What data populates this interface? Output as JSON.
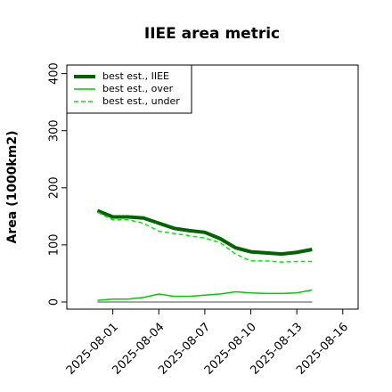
{
  "chart_data": {
    "type": "line",
    "title": "IIEE area metric",
    "y_label": "Area (1000km2)",
    "x": [
      "2025-07-31",
      "2025-08-01",
      "2025-08-02",
      "2025-08-03",
      "2025-08-04",
      "2025-08-05",
      "2025-08-06",
      "2025-08-07",
      "2025-08-08",
      "2025-08-09",
      "2025-08-10",
      "2025-08-11",
      "2025-08-12",
      "2025-08-13",
      "2025-08-14"
    ],
    "series": [
      {
        "name": "best est., IIEE",
        "color": "#006400",
        "linewidth": 4,
        "linestyle": "solid",
        "values": [
          160,
          149,
          149,
          147,
          138,
          129,
          125,
          122,
          111,
          95,
          88,
          86,
          84,
          87,
          92
        ]
      },
      {
        "name": "best est., over",
        "color": "#00cc00",
        "linewidth": 1.5,
        "linestyle": "solid",
        "values": [
          3,
          5,
          5,
          8,
          14,
          10,
          10,
          12,
          14,
          18,
          16,
          15,
          15,
          16,
          21
        ]
      },
      {
        "name": "best est., under",
        "color": "#00ee00",
        "linewidth": 1.5,
        "linestyle": "dashed",
        "values": [
          157,
          144,
          144,
          138,
          124,
          120,
          116,
          112,
          104,
          84,
          72,
          72,
          70,
          71,
          71
        ]
      },
      {
        "color": "#888888",
        "linewidth": 1.5,
        "linestyle": "solid",
        "values": [
          0,
          0,
          0,
          0,
          0,
          0,
          0,
          0,
          0,
          0,
          0,
          0,
          0,
          0,
          0
        ]
      }
    ],
    "xlim": [
      "2025-07-29",
      "2025-08-17"
    ],
    "xticks": [
      "2025-08-01",
      "2025-08-04",
      "2025-08-07",
      "2025-08-10",
      "2025-08-13",
      "2025-08-16"
    ],
    "ylim": [
      -12.5,
      415
    ],
    "yticks": [
      0,
      100,
      200,
      300,
      400
    ],
    "legend": "upper left"
  }
}
